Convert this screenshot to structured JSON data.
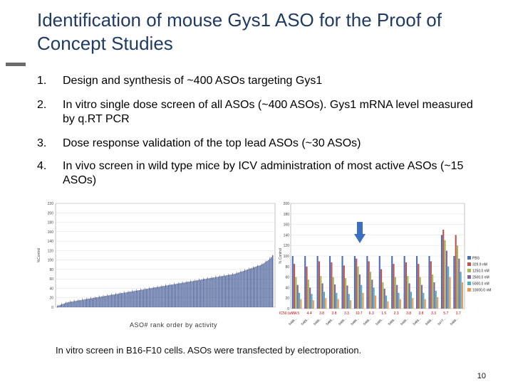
{
  "slide": {
    "title": "Identification of mouse Gys1 ASO for the Proof of Concept Studies",
    "items": [
      {
        "num": "1.",
        "text": "Design and synthesis of ~400 ASOs targeting Gys1"
      },
      {
        "num": "2.",
        "text": "In vitro single dose screen of all ASOs (~400 ASOs). Gys1 mRNA level measured by q.RT PCR"
      },
      {
        "num": "3.",
        "text": "Dose response validation of the top lead ASOs (~30 ASOs)"
      },
      {
        "num": "4.",
        "text": "In vivo screen in wild type mice by ICV administration of most active ASOs (~15 ASOs)"
      }
    ],
    "caption": "In vitro screen in B16-F10 cells. ASOs were transfected by electroporation.",
    "page_number": "10"
  },
  "chart_data": [
    {
      "type": "bar",
      "title": "",
      "xlabel": "ASO# rank order by activity",
      "ylabel": "%Control",
      "ylim": [
        0,
        220
      ],
      "yticks": [
        "0",
        "20",
        "40",
        "60",
        "80",
        "100",
        "120",
        "140",
        "160",
        "180",
        "200",
        "220"
      ],
      "values_note": "~400 bars sorted ascending",
      "values": [
        2,
        4,
        5,
        6,
        7,
        8,
        9,
        10,
        11,
        11,
        12,
        12,
        13,
        13,
        14,
        14,
        15,
        15,
        16,
        16,
        17,
        17,
        18,
        18,
        19,
        19,
        20,
        20,
        21,
        21,
        22,
        22,
        23,
        23,
        24,
        24,
        25,
        25,
        26,
        26,
        27,
        27,
        28,
        28,
        29,
        29,
        30,
        30,
        31,
        31,
        32,
        32,
        33,
        33,
        34,
        34,
        35,
        35,
        36,
        36,
        37,
        37,
        38,
        38,
        39,
        39,
        40,
        40,
        41,
        41,
        42,
        42,
        43,
        43,
        44,
        44,
        45,
        45,
        46,
        46,
        47,
        47,
        48,
        48,
        49,
        49,
        50,
        50,
        51,
        51,
        52,
        52,
        53,
        53,
        54,
        54,
        55,
        55,
        56,
        56,
        57,
        57,
        58,
        58,
        59,
        59,
        60,
        60,
        61,
        61,
        62,
        62,
        63,
        63,
        64,
        64,
        65,
        65,
        66,
        66,
        67,
        67,
        68,
        68,
        69,
        69,
        70,
        70,
        71,
        72,
        73,
        74,
        75,
        76,
        77,
        78,
        79,
        80,
        81,
        82,
        83,
        84,
        85,
        86,
        87,
        88,
        89,
        90,
        92,
        94,
        96,
        98,
        100,
        103,
        106,
        110
      ]
    },
    {
      "type": "bar",
      "title": "",
      "xlabel": "",
      "ylabel": "% Control",
      "ylim": [
        0,
        200
      ],
      "yticks": [
        "0",
        "20",
        "40",
        "60",
        "80",
        "100",
        "120",
        "140",
        "160",
        "180",
        "200"
      ],
      "row_label": "IC50 (uM)",
      "ic50_values": [
        "4.5",
        "4.4",
        "3.8",
        "3.8",
        "3.3",
        "10.7",
        "6.3",
        "1.5",
        "2.3",
        "3.8",
        "3.8",
        "3.3",
        "5.7",
        "3.7"
      ],
      "categories": [
        "5486...",
        "5485...",
        "5486...",
        "5486...",
        "5486...",
        "5486...",
        "5486...",
        "5485...",
        "5486...",
        "5486...",
        "5486...",
        "5486...",
        "5477...",
        "5486..."
      ],
      "legend": [
        "PBS",
        "329.9 nM",
        "1250.0 nM",
        "2500.0 nM",
        "5000.0 nM",
        "10000.0 nM"
      ],
      "series_colors": [
        "#4b6cb7",
        "#c0504d",
        "#9bbb59",
        "#8064a2",
        "#4bacc6",
        "#f79646"
      ],
      "series": [
        {
          "name": "PBS",
          "values": [
            100,
            100,
            100,
            100,
            100,
            100,
            100,
            100,
            100,
            100,
            100,
            100,
            140,
            100
          ]
        },
        {
          "name": "329.9 nM",
          "values": [
            85,
            80,
            90,
            88,
            82,
            95,
            90,
            75,
            85,
            88,
            85,
            90,
            150,
            140
          ]
        },
        {
          "name": "1250.0 nM",
          "values": [
            60,
            55,
            62,
            60,
            58,
            80,
            70,
            50,
            60,
            62,
            60,
            65,
            130,
            120
          ]
        },
        {
          "name": "2500.0 nM",
          "values": [
            45,
            40,
            48,
            46,
            44,
            65,
            55,
            38,
            45,
            48,
            45,
            50,
            110,
            95
          ]
        },
        {
          "name": "5000.0 nM",
          "values": [
            30,
            28,
            32,
            30,
            28,
            45,
            40,
            25,
            30,
            32,
            30,
            34,
            80,
            70
          ]
        },
        {
          "name": "10000.0 nM",
          "values": [
            18,
            16,
            20,
            18,
            16,
            30,
            25,
            14,
            18,
            20,
            18,
            22,
            60,
            50
          ]
        }
      ],
      "highlight_color": "#3a6fc4"
    }
  ]
}
